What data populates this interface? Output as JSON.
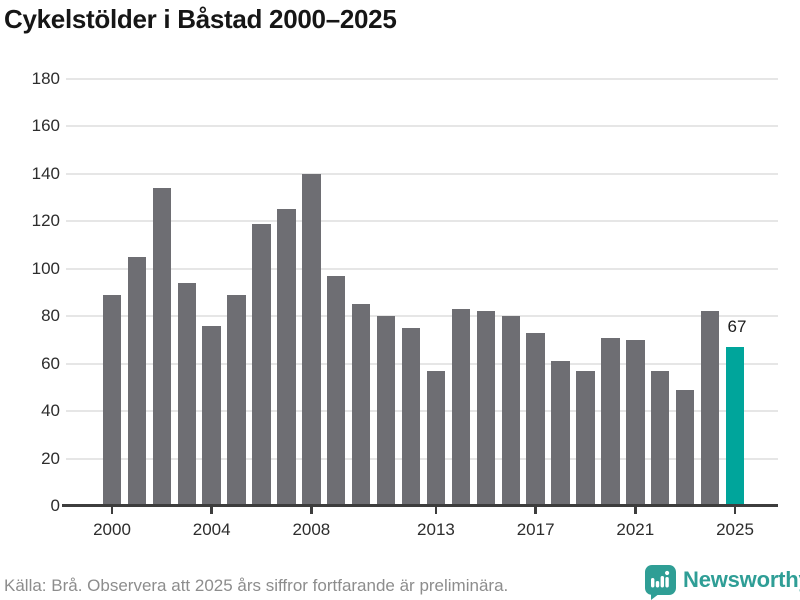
{
  "title": "Cykelstölder i Båstad 2000–2025",
  "chart_data": {
    "type": "bar",
    "title": "Cykelstölder i Båstad 2000–2025",
    "categories": [
      2000,
      2001,
      2002,
      2003,
      2004,
      2005,
      2006,
      2007,
      2008,
      2009,
      2010,
      2011,
      2012,
      2013,
      2014,
      2015,
      2016,
      2017,
      2018,
      2019,
      2020,
      2021,
      2022,
      2023,
      2024,
      2025
    ],
    "values": [
      89,
      105,
      134,
      94,
      76,
      89,
      119,
      125,
      140,
      97,
      85,
      80,
      75,
      57,
      83,
      82,
      80,
      73,
      61,
      57,
      71,
      70,
      57,
      49,
      82,
      67
    ],
    "highlight": {
      "index": 25,
      "label": "67",
      "value": 67
    },
    "ylim": [
      0,
      180
    ],
    "yticks": [
      0,
      20,
      40,
      60,
      80,
      100,
      120,
      140,
      160,
      180
    ],
    "xtick_labels": [
      2000,
      2004,
      2008,
      2013,
      2017,
      2021,
      2025
    ],
    "xlabel": "",
    "ylabel": "",
    "grid": true,
    "legend": "none",
    "colors": {
      "bar": "#6e6e73",
      "highlight": "#00a59b",
      "gridline": "#e6e6e6",
      "axis": "#3d3d3d",
      "tick_label": "#2d2d2d",
      "annotation": "#1c1c1c"
    }
  },
  "footer": {
    "source_note": "Källa: Brå. Observera att 2025 års siffror fortfarande är preliminära.",
    "source_color": "#8d8d8d",
    "brand": "Newsworthy",
    "brand_color": "#2f9e96"
  }
}
